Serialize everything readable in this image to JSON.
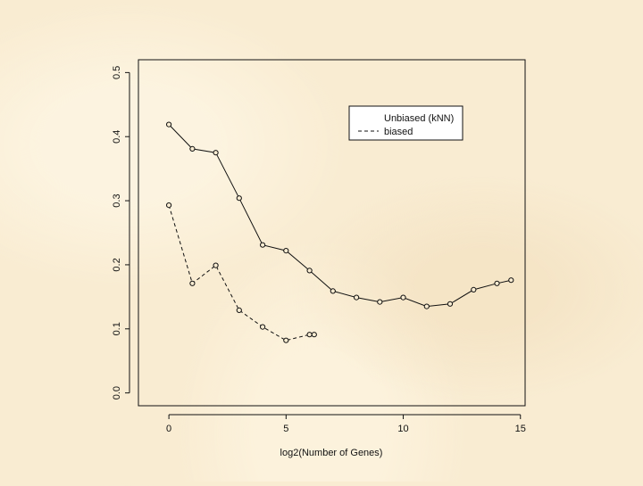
{
  "chart_data": {
    "type": "line",
    "xlabel": "log2(Number of Genes)",
    "ylabel": "",
    "xlim": [
      -1.3,
      15.2
    ],
    "ylim": [
      -0.02,
      0.52
    ],
    "x_ticks": [
      0,
      5,
      10,
      15
    ],
    "x_tick_labels": [
      "0",
      "5",
      "10",
      "15"
    ],
    "y_ticks": [
      0.0,
      0.1,
      0.2,
      0.3,
      0.4,
      0.5
    ],
    "y_tick_labels": [
      "0.0",
      "0.1",
      "0.2",
      "0.3",
      "0.4",
      "0.5"
    ],
    "legend_position": "top-right",
    "series": [
      {
        "name": "Unbiased (kNN)",
        "line_style": "solid",
        "x": [
          0,
          1,
          2,
          3,
          4,
          5,
          6,
          7,
          8,
          9,
          10,
          11,
          12,
          13,
          14,
          14.6
        ],
        "y": [
          0.419,
          0.381,
          0.375,
          0.304,
          0.231,
          0.222,
          0.191,
          0.159,
          0.149,
          0.142,
          0.149,
          0.135,
          0.139,
          0.161,
          0.171,
          0.176
        ]
      },
      {
        "name": "biased",
        "line_style": "dashed",
        "x": [
          0,
          1,
          2,
          3,
          4,
          5,
          6,
          6.2
        ],
        "y": [
          0.293,
          0.171,
          0.199,
          0.129,
          0.103,
          0.082,
          0.091,
          0.091
        ]
      }
    ]
  }
}
